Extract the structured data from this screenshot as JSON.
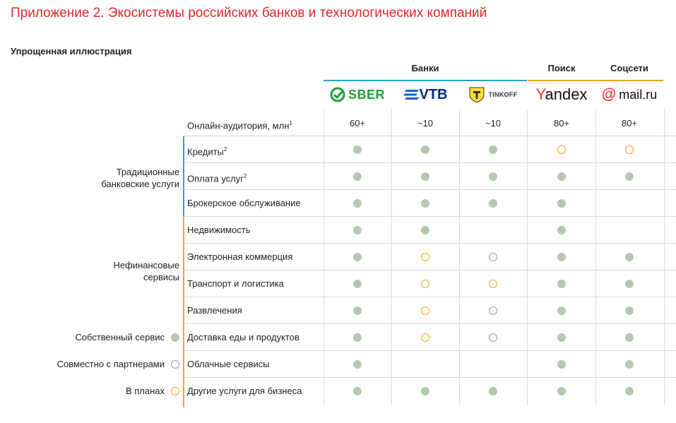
{
  "title": "Приложение 2. Экосистемы российских банков и технологических компаний",
  "subtitle": "Упрощенная иллюстрация",
  "groups": {
    "banks": "Банки",
    "search": "Поиск",
    "social": "Соцсети"
  },
  "colors": {
    "title": "#e3242b",
    "banks_line": "#2ba3c9",
    "search_line": "#f2a71b",
    "own": "#b4c8ad",
    "planned": "#f2a71b",
    "partner": "#9a9a9a"
  },
  "companies": [
    {
      "key": "sber",
      "name": "SBER",
      "icon": "sber-check-logo"
    },
    {
      "key": "vtb",
      "name": "VTB",
      "icon": "vtb-stripes-logo"
    },
    {
      "key": "tinkoff",
      "name": "TINKOFF",
      "icon": "tinkoff-shield-logo"
    },
    {
      "key": "yandex",
      "name": "Yandex",
      "icon": "yandex-logo"
    },
    {
      "key": "mail",
      "name": "mail.ru",
      "icon": "mail-at-logo"
    }
  ],
  "audience": {
    "label": "Онлайн-аудитория, млн",
    "label_sup": "1",
    "values": [
      "60+",
      "~10",
      "~10",
      "80+",
      "80+"
    ]
  },
  "categories": [
    {
      "label_line1": "Традиционные",
      "label_line2": "банковские услуги"
    },
    {
      "label_line1": "Нефинансовые",
      "label_line2": "сервисы"
    }
  ],
  "services": [
    {
      "label": "Кредиты",
      "sup": "2",
      "status": [
        "own",
        "own",
        "own",
        "plan",
        "plan"
      ]
    },
    {
      "label": "Оплата услуг",
      "sup": "2",
      "status": [
        "own",
        "own",
        "own",
        "own",
        "own"
      ]
    },
    {
      "label": "Брокерское обслуживание",
      "sup": "",
      "status": [
        "own",
        "own",
        "own",
        "own",
        ""
      ]
    },
    {
      "label": "Недвижимость",
      "sup": "",
      "status": [
        "own",
        "own",
        "",
        "own",
        ""
      ]
    },
    {
      "label": "Электронная коммерция",
      "sup": "",
      "status": [
        "own",
        "plan",
        "partner",
        "own",
        "own"
      ]
    },
    {
      "label": "Транспорт и логистика",
      "sup": "",
      "status": [
        "own",
        "plan",
        "plan",
        "own",
        "own"
      ]
    },
    {
      "label": "Развлечения",
      "sup": "",
      "status": [
        "own",
        "plan",
        "partner",
        "own",
        "own"
      ]
    },
    {
      "label": "Доставка еды и продуктов",
      "sup": "",
      "status": [
        "own",
        "plan",
        "partner",
        "own",
        "own"
      ]
    },
    {
      "label": "Облачные сервисы",
      "sup": "",
      "status": [
        "own",
        "",
        "",
        "own",
        "own"
      ]
    },
    {
      "label": "Другие услуги для бизнеса",
      "sup": "",
      "status": [
        "own",
        "own",
        "own",
        "own",
        "own"
      ]
    }
  ],
  "legend": [
    {
      "label": "Собственный сервис",
      "type": "own"
    },
    {
      "label": "Совместно с партнерами",
      "type": "partner"
    },
    {
      "label": "В планах",
      "type": "plan"
    }
  ]
}
